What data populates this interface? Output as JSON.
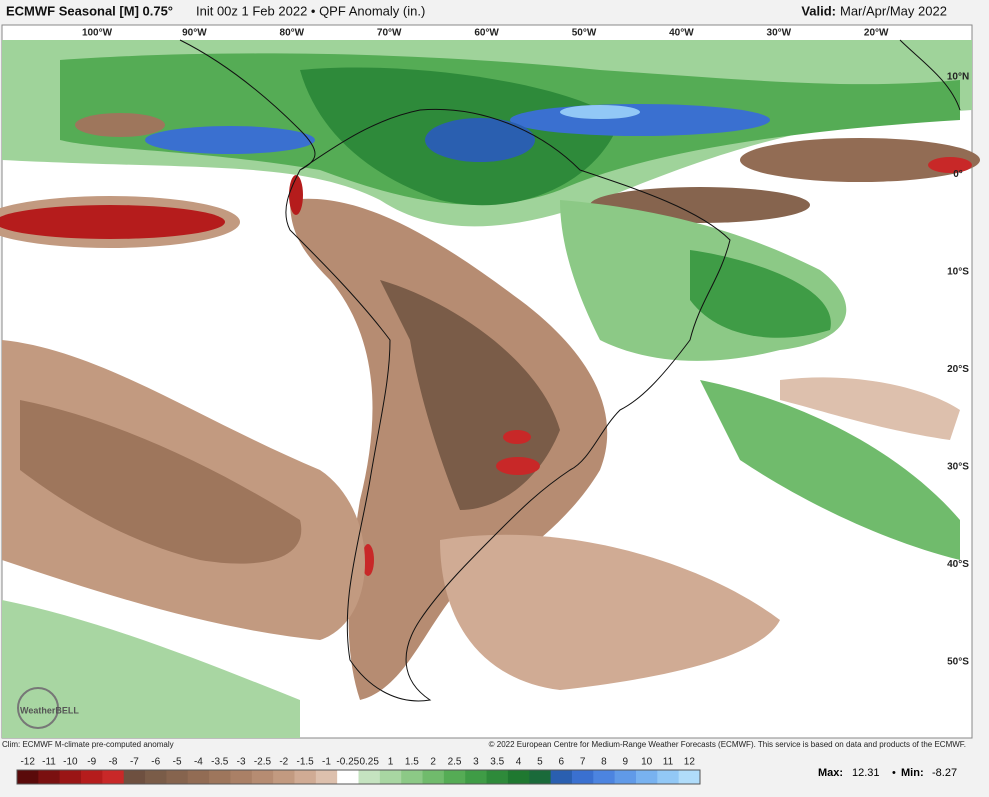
{
  "header": {
    "title": "ECMWF Seasonal [M] 0.75°",
    "subtitle": "Init 00z 1 Feb 2022 • QPF Anomaly (in.)",
    "valid_label": "Valid:",
    "valid_value": "Mar/Apr/May 2022"
  },
  "map": {
    "longitudes": [
      "100°W",
      "90°W",
      "80°W",
      "70°W",
      "60°W",
      "50°W",
      "40°W",
      "30°W",
      "20°W"
    ],
    "latitudes": [
      "10°N",
      "0°",
      "10°S",
      "20°S",
      "30°S",
      "40°S",
      "50°S"
    ],
    "logo": "WeatherBELL"
  },
  "footer": {
    "left": "Clim: ECMWF M-climate pre-computed anomaly",
    "right": "© 2022 European Centre for Medium-Range Weather Forecasts (ECMWF). This service is based on data and products of the ECMWF."
  },
  "colorbar": {
    "labels": [
      "-12",
      "-11",
      "-10",
      "-9",
      "-8",
      "-7",
      "-6",
      "-5",
      "-4",
      "-3.5",
      "-3",
      "-2.5",
      "-2",
      "-1.5",
      "-1",
      "-0.25",
      "0.25",
      "1",
      "1.5",
      "2",
      "2.5",
      "3",
      "3.5",
      "4",
      "5",
      "6",
      "7",
      "8",
      "9",
      "10",
      "11",
      "12"
    ],
    "colors": [
      "#5a0a0a",
      "#7a1010",
      "#9a1515",
      "#b51c1c",
      "#c82828",
      "#6e5040",
      "#7a5c48",
      "#86644e",
      "#926c54",
      "#9e765c",
      "#aa8066",
      "#b68c72",
      "#c29a80",
      "#d0ab94",
      "#ddc0ad",
      "#ffffff",
      "#c5e3c0",
      "#a8d6a2",
      "#8cc986",
      "#70bb6c",
      "#55ac55",
      "#3f9c46",
      "#2e8a3a",
      "#1f7830",
      "#1a6a3a",
      "#2a5fb0",
      "#3a70d0",
      "#4c84e0",
      "#609ae8",
      "#78b2f0",
      "#92c8f6",
      "#b0dcfa"
    ]
  },
  "stats": {
    "max_label": "Max:",
    "max": "12.31",
    "min_label": "Min:",
    "min": "-8.27"
  }
}
